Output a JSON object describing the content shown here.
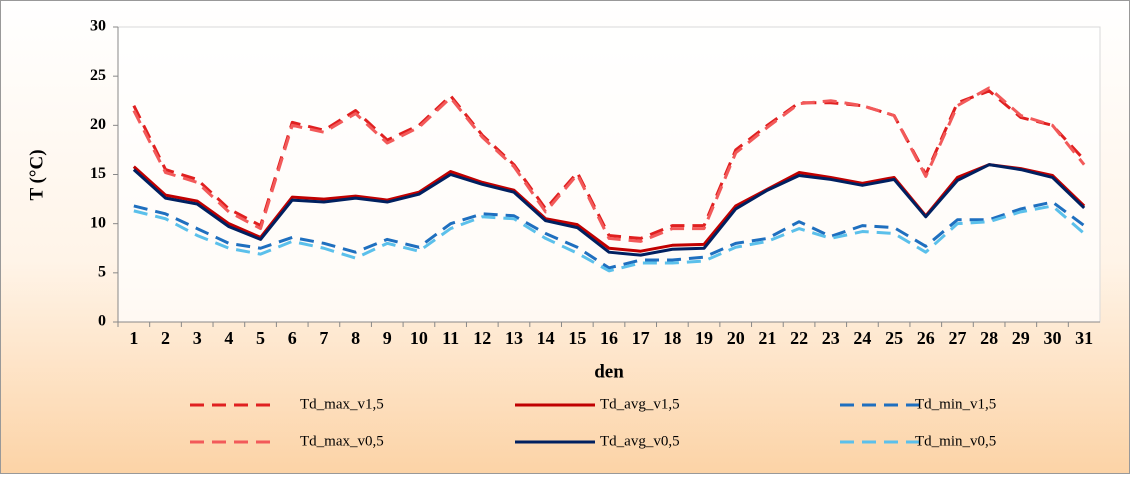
{
  "chart_data": {
    "type": "line",
    "ylabel": "T (°C)",
    "xlabel": "den",
    "categories": [
      "1",
      "2",
      "3",
      "4",
      "5",
      "6",
      "7",
      "8",
      "9",
      "10",
      "11",
      "12",
      "13",
      "14",
      "15",
      "16",
      "17",
      "18",
      "19",
      "20",
      "21",
      "22",
      "23",
      "24",
      "25",
      "26",
      "27",
      "28",
      "29",
      "30",
      "31"
    ],
    "ylim": [
      0,
      30
    ],
    "yticks": [
      0,
      5,
      10,
      15,
      20,
      25,
      30
    ],
    "series": [
      {
        "name": "Td_max_v1,5",
        "color": "#e02020",
        "dash": true,
        "values": [
          22,
          15.5,
          14.5,
          11.5,
          9.8,
          20.3,
          19.5,
          21.5,
          18.5,
          20,
          23,
          19,
          16,
          11.5,
          15.2,
          8.8,
          8.5,
          9.8,
          9.8,
          17.5,
          20,
          22.3,
          22.3,
          22,
          21,
          15,
          22.3,
          23.5,
          20.8,
          20,
          16.5
        ]
      },
      {
        "name": "Td_avg_v1,5",
        "color": "#c00000",
        "dash": false,
        "values": [
          15.8,
          12.9,
          12.3,
          10,
          8.6,
          12.7,
          12.5,
          12.8,
          12.4,
          13.2,
          15.3,
          14.2,
          13.4,
          10.5,
          9.9,
          7.5,
          7.2,
          7.8,
          7.9,
          11.8,
          13.5,
          15.2,
          14.7,
          14.1,
          14.7,
          10.8,
          14.7,
          16,
          15.6,
          14.9,
          11.8
        ]
      },
      {
        "name": "Td_min_v1,5",
        "color": "#1f6fbf",
        "dash": true,
        "values": [
          11.8,
          11,
          9.5,
          8,
          7.5,
          8.6,
          8,
          7.1,
          8.4,
          7.6,
          10,
          11,
          10.8,
          9,
          7.6,
          5.5,
          6.3,
          6.3,
          6.6,
          8,
          8.5,
          10.2,
          8.7,
          9.8,
          9.6,
          7.7,
          10.4,
          10.4,
          11.5,
          12.2,
          9.8
        ]
      },
      {
        "name": "Td_max_v0,5",
        "color": "#f25a5a",
        "dash": true,
        "values": [
          21.5,
          15.2,
          14.2,
          11.2,
          9.5,
          20,
          19.3,
          21.2,
          18.2,
          19.8,
          22.8,
          18.8,
          15.8,
          11.2,
          15,
          8.5,
          8.2,
          9.5,
          9.5,
          17.2,
          19.8,
          22.2,
          22.5,
          22,
          21,
          14.8,
          22,
          23.8,
          21,
          20,
          16
        ]
      },
      {
        "name": "Td_avg_v0,5",
        "color": "#002060",
        "dash": false,
        "values": [
          15.5,
          12.6,
          12,
          9.7,
          8.4,
          12.4,
          12.2,
          12.6,
          12.2,
          13,
          15,
          14,
          13.2,
          10.3,
          9.6,
          7.1,
          6.8,
          7.4,
          7.5,
          11.5,
          13.4,
          14.9,
          14.5,
          13.9,
          14.5,
          10.7,
          14.4,
          16,
          15.5,
          14.7,
          11.6
        ]
      },
      {
        "name": "Td_min_v0,5",
        "color": "#5bc0eb",
        "dash": true,
        "values": [
          11.3,
          10.5,
          8.8,
          7.5,
          6.9,
          8.2,
          7.5,
          6.5,
          8,
          7.2,
          9.5,
          10.7,
          10.5,
          8.5,
          7,
          5.2,
          6,
          6,
          6.2,
          7.6,
          8.2,
          9.5,
          8.5,
          9.2,
          9,
          7.1,
          10,
          10.2,
          11.2,
          11.8,
          9
        ]
      }
    ]
  }
}
